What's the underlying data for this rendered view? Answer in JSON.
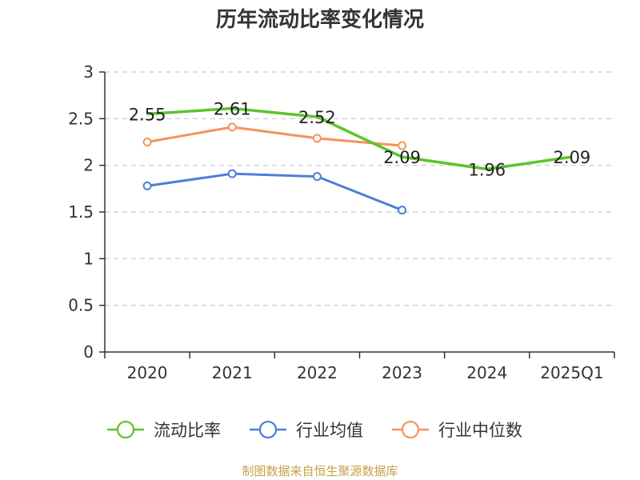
{
  "title": "历年流动比率变化情况",
  "source": "制图数据来自恒生聚源数据库",
  "chart_data": {
    "type": "line",
    "categories": [
      "2020",
      "2021",
      "2022",
      "2023",
      "2024",
      "2025Q1"
    ],
    "y_ticks": [
      "0",
      "0.5",
      "1",
      "1.5",
      "2",
      "2.5",
      "3"
    ],
    "ylim": [
      0,
      3
    ],
    "grid": true,
    "legend_position": "bottom",
    "series": [
      {
        "name": "流动比率",
        "color": "#5cc52b",
        "values": [
          2.55,
          2.61,
          2.52,
          2.09,
          1.96,
          2.09
        ],
        "labels": [
          "2.55",
          "2.61",
          "2.52",
          "2.09",
          "1.96",
          "2.09"
        ],
        "markers": false
      },
      {
        "name": "行业均值",
        "color": "#4e7fd8",
        "values": [
          1.78,
          1.91,
          1.88,
          1.52,
          null,
          null
        ],
        "markers": true
      },
      {
        "name": "行业中位数",
        "color": "#f7925f",
        "values": [
          2.25,
          2.41,
          2.29,
          2.21,
          null,
          null
        ],
        "markers": true
      }
    ]
  }
}
